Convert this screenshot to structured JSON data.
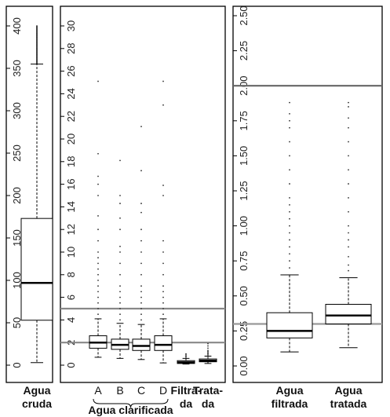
{
  "chart_data": [
    {
      "type": "boxplot",
      "panel": "left",
      "ylim": [
        0,
        400
      ],
      "yticks": [
        0,
        50,
        100,
        150,
        200,
        250,
        300,
        350,
        400
      ],
      "boxes": [
        {
          "label": "Agua\ncruda",
          "q1": 53,
          "median": 97,
          "q3": 173,
          "whisker_low": 3,
          "whisker_high": 355,
          "outliers_to": 400
        }
      ],
      "xlabel": "",
      "ylabel": ""
    },
    {
      "type": "boxplot",
      "panel": "middle",
      "ylim": [
        0,
        30
      ],
      "yticks": [
        0,
        2,
        4,
        6,
        8,
        10,
        12,
        14,
        16,
        18,
        20,
        22,
        24,
        26,
        28,
        30
      ],
      "hlines": [
        {
          "y": 5,
          "color": "#888888"
        },
        {
          "y": 2,
          "color": "#888888"
        }
      ],
      "boxes": [
        {
          "label": "A",
          "q1": 1.5,
          "median": 2.0,
          "q3": 2.6,
          "whisker_low": 0.7,
          "whisker_high": 4.1,
          "outliers": [
            4.5,
            5.0,
            5.5,
            6.0,
            6.5,
            7.0,
            7.5,
            8.0,
            8.5,
            9.0,
            9.5,
            10.0,
            11.0,
            12.0,
            13.2,
            15.0,
            16.0,
            16.7,
            18.7,
            25.1
          ]
        },
        {
          "label": "B",
          "q1": 1.4,
          "median": 1.8,
          "q3": 2.3,
          "whisker_low": 0.6,
          "whisker_high": 3.7,
          "outliers": [
            4.0,
            4.5,
            5.0,
            5.5,
            6.0,
            6.5,
            7.0,
            8.0,
            9.0,
            10.0,
            10.5,
            12.0,
            13.0,
            14.3,
            15.0,
            18.1
          ]
        },
        {
          "label": "C",
          "q1": 1.3,
          "median": 1.7,
          "q3": 2.3,
          "whisker_low": 0.5,
          "whisker_high": 3.6,
          "outliers": [
            4.0,
            4.5,
            5.0,
            5.5,
            6.0,
            6.5,
            7.0,
            8.0,
            9.0,
            10.0,
            11.0,
            12.0,
            13.5,
            14.3,
            17.2,
            21.1
          ]
        },
        {
          "label": "D",
          "q1": 1.3,
          "median": 1.8,
          "q3": 2.6,
          "whisker_low": 0.2,
          "whisker_high": 4.1,
          "outliers": [
            4.5,
            5.0,
            5.5,
            6.0,
            6.5,
            7.0,
            8.0,
            9.0,
            10.0,
            11.0,
            15.0,
            15.9,
            23.0,
            25.1
          ]
        },
        {
          "label": "Filtra-\nda",
          "q1": 0.15,
          "median": 0.25,
          "q3": 0.4,
          "whisker_low": 0.1,
          "whisker_high": 0.6,
          "outliers": [
            0.7,
            0.8,
            0.9,
            1.0
          ]
        },
        {
          "label": "Trata-\nda",
          "q1": 0.3,
          "median": 0.4,
          "q3": 0.55,
          "whisker_low": 0.15,
          "whisker_high": 0.8,
          "outliers": [
            0.9,
            1.0,
            1.1,
            1.2,
            1.3,
            1.5,
            1.7,
            1.9
          ]
        }
      ],
      "group_label": "Agua clarificada",
      "xlabel": "",
      "ylabel": ""
    },
    {
      "type": "boxplot",
      "panel": "right",
      "ylim": [
        0,
        2.5
      ],
      "yticks": [
        0.0,
        0.25,
        0.5,
        0.75,
        1.0,
        1.25,
        1.5,
        1.75,
        2.0,
        2.25,
        2.5
      ],
      "ytick_labels": [
        "0.00",
        "0.25",
        "0.50",
        "0.75",
        "1.00",
        "1.25",
        "1.50",
        "1.75",
        "2.00",
        "2.25",
        "2.50"
      ],
      "hlines": [
        {
          "y": 2.0,
          "color": "#666666"
        },
        {
          "y": 0.3,
          "color": "#999999"
        }
      ],
      "boxes": [
        {
          "label": "Agua\nfiltrada",
          "q1": 0.2,
          "median": 0.25,
          "q3": 0.38,
          "whisker_low": 0.1,
          "whisker_high": 0.65,
          "outliers": [
            0.7,
            0.75,
            0.8,
            0.85,
            0.9,
            0.95,
            1.0,
            1.05,
            1.1,
            1.15,
            1.2,
            1.3,
            1.4,
            1.5,
            1.6,
            1.7,
            1.75,
            1.8,
            1.88
          ]
        },
        {
          "label": "Agua\ntratada",
          "q1": 0.3,
          "median": 0.36,
          "q3": 0.44,
          "whisker_low": 0.13,
          "whisker_high": 0.63,
          "outliers": [
            0.68,
            0.72,
            0.78,
            0.85,
            0.9,
            0.95,
            1.0,
            1.1,
            1.2,
            1.3,
            1.4,
            1.5,
            1.6,
            1.7,
            1.77,
            1.85,
            1.88
          ]
        }
      ],
      "xlabel": "",
      "ylabel": ""
    }
  ]
}
